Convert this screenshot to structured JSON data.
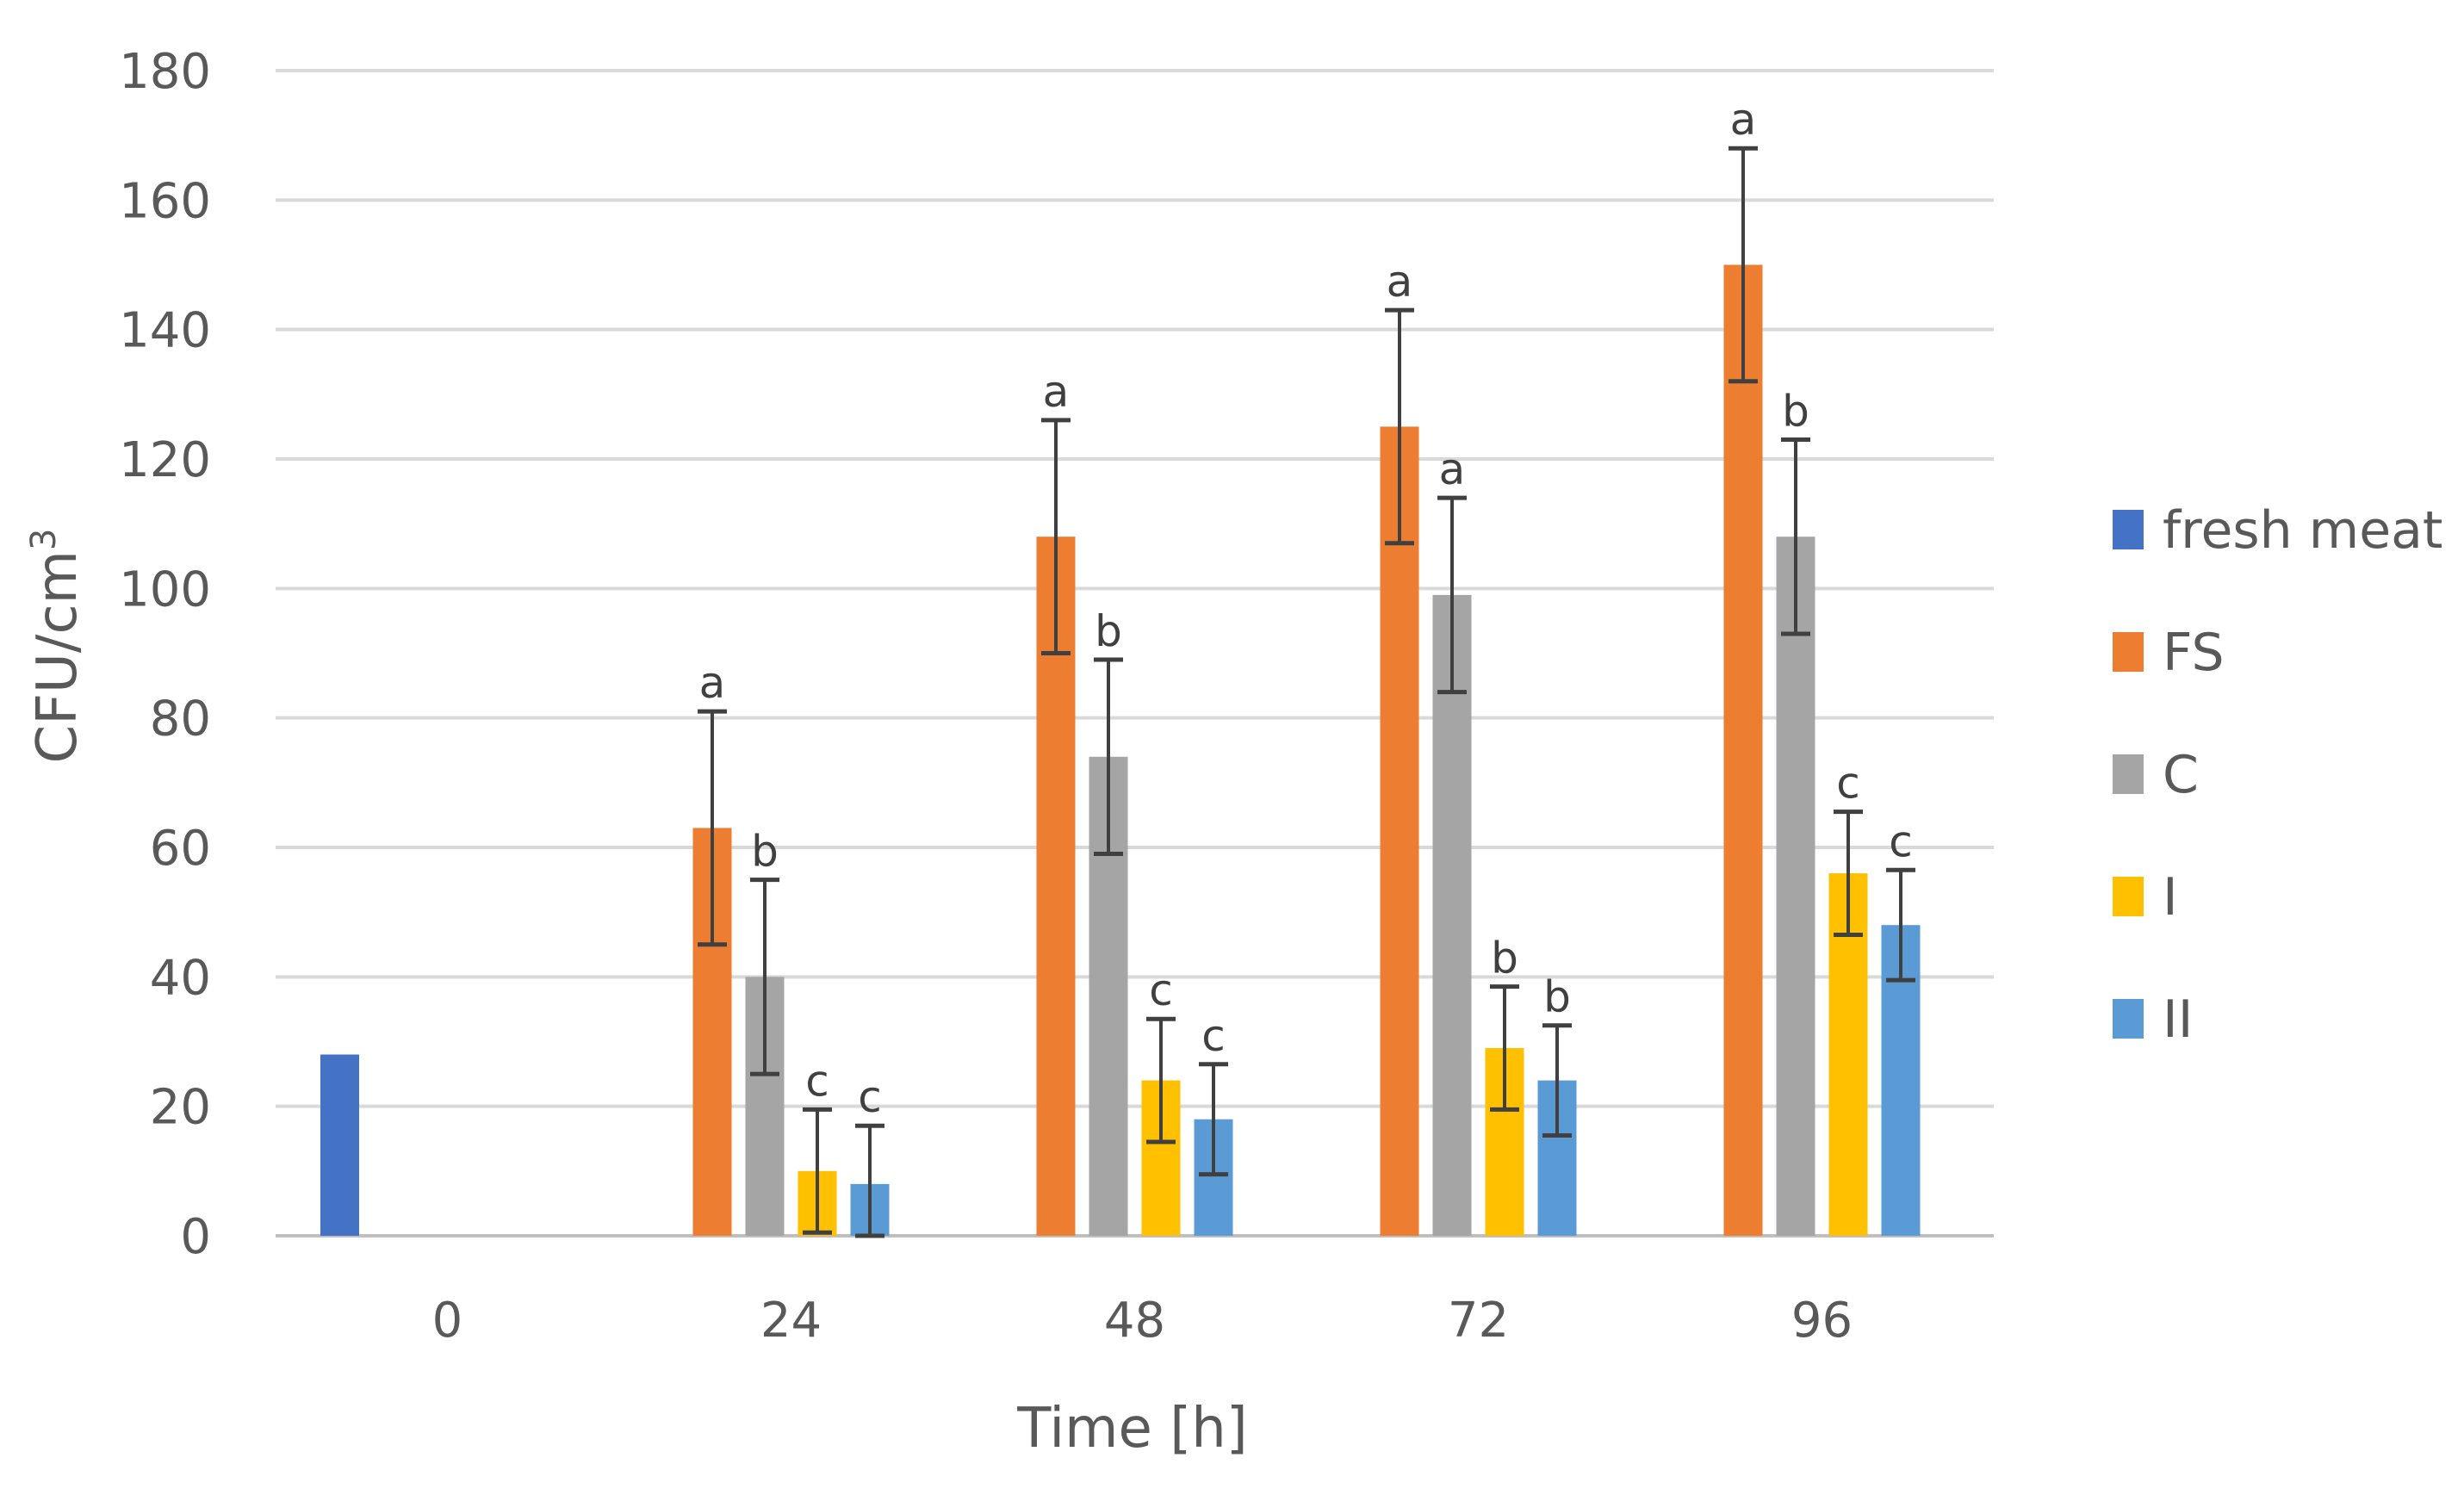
{
  "chart_data": {
    "type": "bar",
    "title": "",
    "xlabel": "Time [h]",
    "ylabel": "CFU/cm",
    "ylabel_sup": "3",
    "ylim": [
      0,
      180
    ],
    "yticks": [
      "0",
      "20",
      "40",
      "60",
      "80",
      "100",
      "120",
      "140",
      "160",
      "180"
    ],
    "categories": [
      "0",
      "24",
      "48",
      "72",
      "96"
    ],
    "legend_position": "right",
    "grid": true,
    "series": [
      {
        "name": "fresh meat",
        "color": "#4472C4",
        "values": [
          28,
          null,
          null,
          null,
          null
        ],
        "errors": [
          null,
          null,
          null,
          null,
          null
        ],
        "labels": [
          null,
          null,
          null,
          null,
          null
        ]
      },
      {
        "name": "FS",
        "color": "#ED7D31",
        "values": [
          null,
          63,
          108,
          125,
          150
        ],
        "errors": [
          null,
          18,
          18,
          18,
          18
        ],
        "labels": [
          null,
          "a",
          "a",
          "a",
          "a"
        ]
      },
      {
        "name": "C",
        "color": "#A5A5A5",
        "values": [
          null,
          40,
          74,
          99,
          108
        ],
        "errors": [
          null,
          15,
          15,
          15,
          15
        ],
        "labels": [
          null,
          "b",
          "b",
          "a",
          "b"
        ]
      },
      {
        "name": "I",
        "color": "#FFC000",
        "values": [
          null,
          10,
          24,
          29,
          56
        ],
        "errors": [
          null,
          9.5,
          9.5,
          9.5,
          9.5
        ],
        "labels": [
          null,
          "c",
          "c",
          "b",
          "c"
        ]
      },
      {
        "name": "II",
        "color": "#5B9BD5",
        "values": [
          null,
          8,
          18,
          24,
          48
        ],
        "errors": [
          null,
          9,
          8.5,
          8.5,
          8.5
        ],
        "labels": [
          null,
          "c",
          "c",
          "b",
          "c"
        ]
      }
    ]
  }
}
